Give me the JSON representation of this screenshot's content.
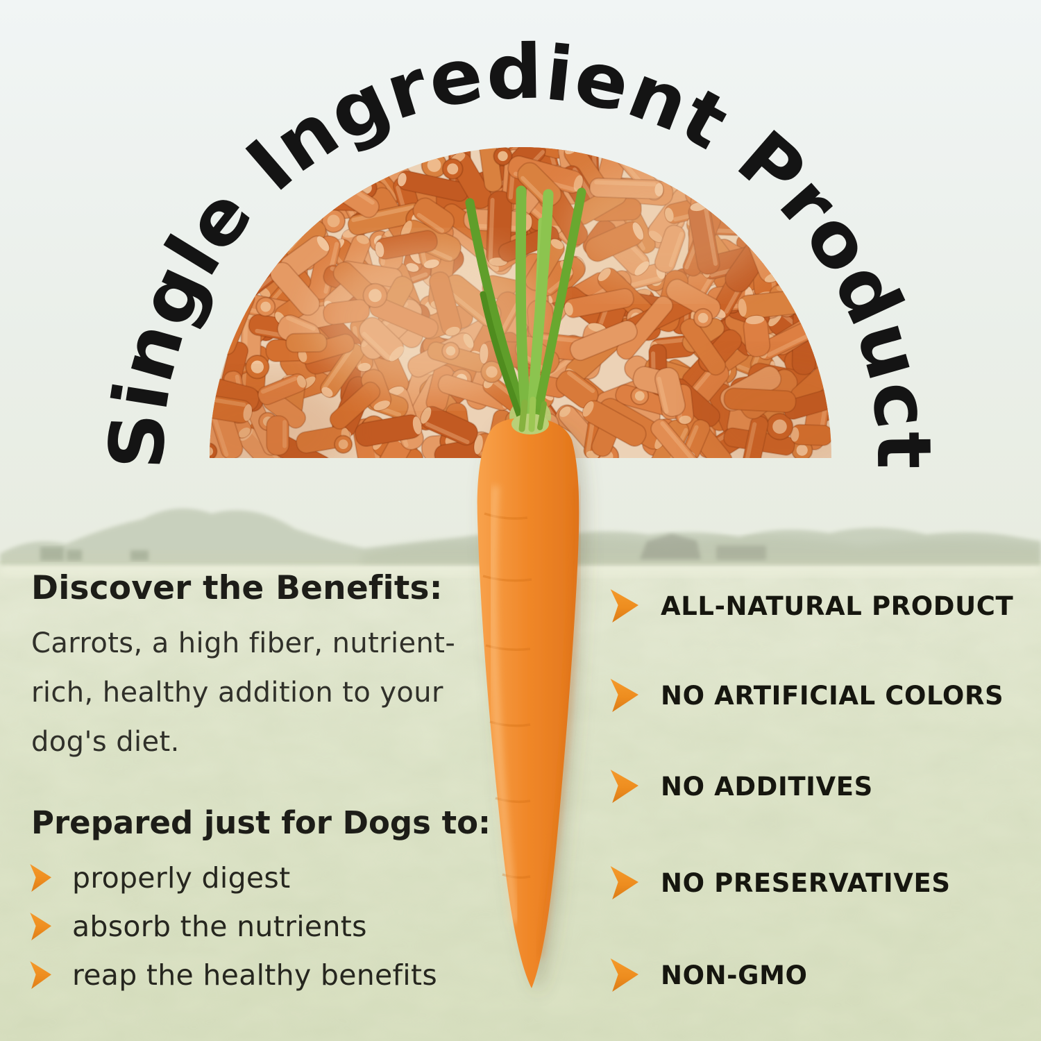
{
  "arc_title": "Single Ingredient Product",
  "left": {
    "benefits_heading": "Discover the Benefits:",
    "benefits_body": "Carrots, a high fiber, nutrient-rich, healthy addition to your dog's diet.",
    "prepared_heading": "Prepared just for Dogs to:",
    "prepared_items": [
      "properly digest",
      "absorb the nutrients",
      "reap the healthy benefits"
    ]
  },
  "right": {
    "claims": [
      "ALL-NATURAL PRODUCT",
      "NO ARTIFICIAL COLORS",
      "NO ADDITIVES",
      "NO PRESERVATIVES",
      "NON-GMO"
    ]
  },
  "illustrations": {
    "semicircle": "dehydrated carrot pellets",
    "center": "whole fresh carrot with green tops",
    "background": "faded farm field with tree line"
  },
  "icons": {
    "bullet": "arrow-right-icon"
  },
  "colors": {
    "accent_orange": "#ee8d1f",
    "text_dark": "#1d1d18",
    "carrot_orange": "#f08728",
    "stem_green": "#7cb842",
    "field_green": "#e2e8d0",
    "sky": "#eef3f3",
    "pellet_base": "#d4702f"
  }
}
